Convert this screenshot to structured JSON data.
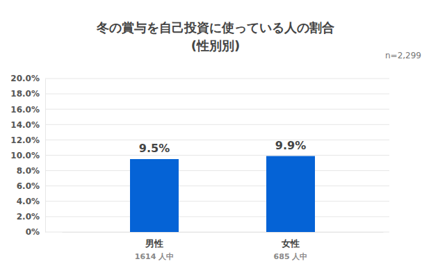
{
  "chart_data": {
    "type": "bar",
    "title": "冬の賞与を自己投資に使っている人の割合",
    "subtitle": "(性別別)",
    "annotation": "n=2,299",
    "categories": [
      "男性",
      "女性"
    ],
    "category_sublabels": [
      "1614 人中",
      "685 人中"
    ],
    "values": [
      9.5,
      9.9
    ],
    "value_labels": [
      "9.5%",
      "9.9%"
    ],
    "color": "#0563d6",
    "ylim": [
      0,
      20
    ],
    "yticks": [
      {
        "value": 0,
        "label": "0%"
      },
      {
        "value": 2,
        "label": "2.0%"
      },
      {
        "value": 4,
        "label": "4.0%"
      },
      {
        "value": 6,
        "label": "6.0%"
      },
      {
        "value": 8,
        "label": "8.0%"
      },
      {
        "value": 10,
        "label": "10.0%"
      },
      {
        "value": 12,
        "label": "12.0%"
      },
      {
        "value": 14,
        "label": "14.0%"
      },
      {
        "value": 16,
        "label": "16.0%"
      },
      {
        "value": 18,
        "label": "18.0%"
      },
      {
        "value": 20,
        "label": "20.0%"
      }
    ],
    "grid": true,
    "data_labels": true
  }
}
